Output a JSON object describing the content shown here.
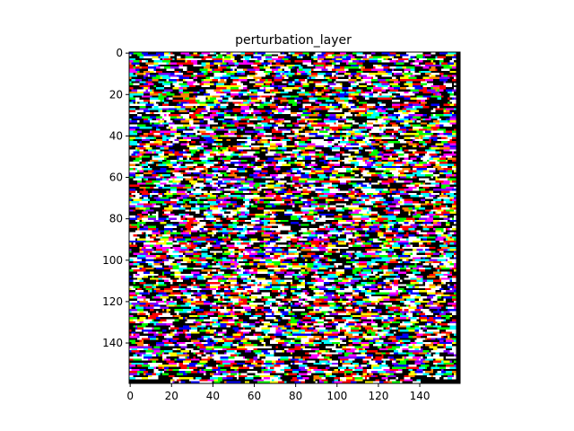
{
  "chart_data": {
    "type": "heatmap",
    "title": "perturbation_layer",
    "xlabel": "",
    "ylabel": "",
    "image_width": 160,
    "image_height": 160,
    "xlim": [
      -0.5,
      159.5
    ],
    "ylim": [
      159.5,
      -0.5
    ],
    "x_ticks": [
      0,
      20,
      40,
      60,
      80,
      100,
      120,
      140
    ],
    "y_ticks": [
      0,
      20,
      40,
      60,
      80,
      100,
      120,
      140
    ],
    "x_tick_labels": [
      "0",
      "20",
      "40",
      "60",
      "80",
      "100",
      "120",
      "140"
    ],
    "y_tick_labels": [
      "0",
      "20",
      "40",
      "60",
      "80",
      "100",
      "120",
      "140"
    ],
    "grid": false,
    "content": "saturated RGB noise pattern (perturbation)",
    "palette": [
      "#000000",
      "#ffffff",
      "#ff0000",
      "#00ff00",
      "#0000ff",
      "#ffff00",
      "#00ffff",
      "#ff00ff",
      "#ff8000",
      "#8000ff"
    ]
  }
}
